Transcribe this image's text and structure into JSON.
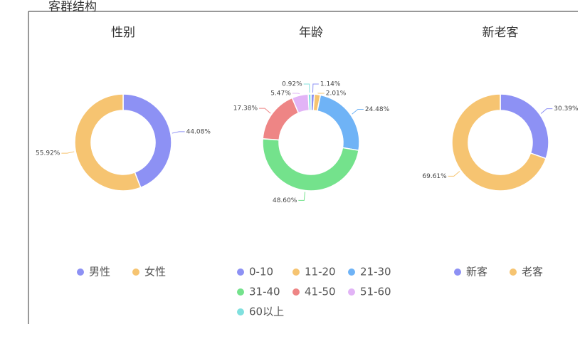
{
  "header": {
    "title": "客群结构"
  },
  "chart_data": [
    {
      "type": "pie",
      "title": "性别",
      "categories": [
        "男性",
        "女性"
      ],
      "values": [
        44.08,
        55.92
      ],
      "value_labels": [
        "44.08%",
        "55.92%"
      ],
      "colors": [
        "#8d91f4",
        "#f6c471"
      ]
    },
    {
      "type": "pie",
      "title": "年龄",
      "categories": [
        "0-10",
        "11-20",
        "21-30",
        "31-40",
        "41-50",
        "51-60",
        "60以上"
      ],
      "values": [
        1.14,
        2.01,
        24.48,
        48.6,
        17.38,
        5.47,
        0.92
      ],
      "value_labels": [
        "1.14%",
        "2.01%",
        "24.48%",
        "48.60%",
        "17.38%",
        "5.47%",
        "0.92%"
      ],
      "colors": [
        "#8d91f4",
        "#f6c471",
        "#6fb3f6",
        "#74e28c",
        "#ee8585",
        "#e2b4f6",
        "#80e0de"
      ]
    },
    {
      "type": "pie",
      "title": "新老客",
      "categories": [
        "新客",
        "老客"
      ],
      "values": [
        30.39,
        69.61
      ],
      "value_labels": [
        "30.39%",
        "69.61%"
      ],
      "colors": [
        "#8d91f4",
        "#f6c471"
      ]
    }
  ]
}
